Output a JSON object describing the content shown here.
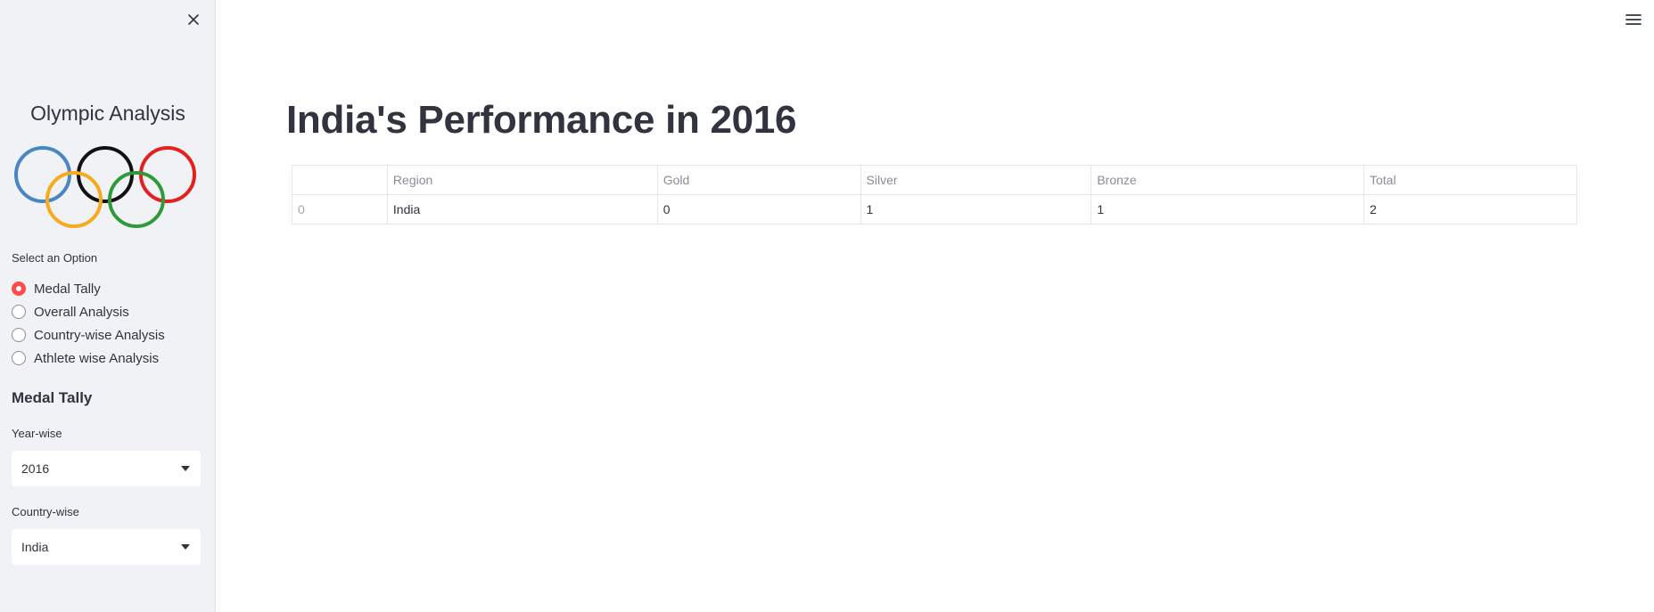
{
  "sidebar": {
    "title": "Olympic Analysis",
    "logo_icon": "olympic-rings-icon",
    "option_label": "Select an Option",
    "options": [
      {
        "label": "Medal Tally",
        "selected": true
      },
      {
        "label": "Overall Analysis",
        "selected": false
      },
      {
        "label": "Country-wise Analysis",
        "selected": false
      },
      {
        "label": "Athlete wise Analysis",
        "selected": false
      }
    ],
    "subheader": "Medal Tally",
    "year_label": "Year-wise",
    "year_value": "2016",
    "country_label": "Country-wise",
    "country_value": "India"
  },
  "main": {
    "title": "India's Performance in 2016",
    "table": {
      "headers": [
        "",
        "Region",
        "Gold",
        "Silver",
        "Bronze",
        "Total"
      ],
      "rows": [
        [
          "0",
          "India",
          "0",
          "1",
          "1",
          "2"
        ]
      ]
    }
  },
  "colors": {
    "accent": "#ff4b4b",
    "sidebar_bg": "#f0f2f6",
    "text": "#31333f",
    "ring_blue": "#4a86c5",
    "ring_yellow": "#f6ab1e",
    "ring_black": "#111111",
    "ring_green": "#2f9a3c",
    "ring_red": "#e51f1f"
  }
}
